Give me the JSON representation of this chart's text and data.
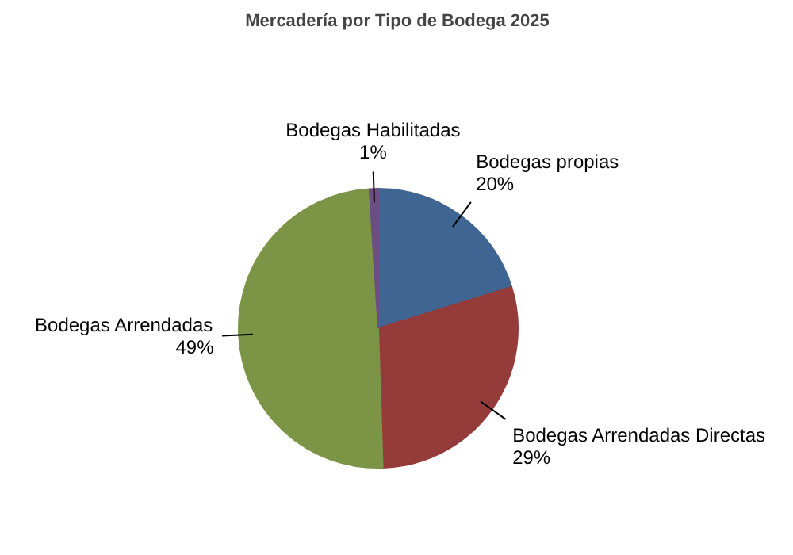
{
  "chart_data": {
    "type": "pie",
    "title": "Mercadería por Tipo de Bodega 2025",
    "categories": [
      "Bodegas propias",
      "Bodegas Arrendadas Directas",
      "Bodegas Arrendadas",
      "Bodegas Habilitadas"
    ],
    "values": [
      20,
      29,
      49,
      1
    ],
    "value_labels": [
      "20%",
      "29%",
      "49%",
      "1%"
    ],
    "colors": [
      "#3f6592",
      "#953c3a",
      "#7b9446",
      "#6a4f82"
    ]
  }
}
